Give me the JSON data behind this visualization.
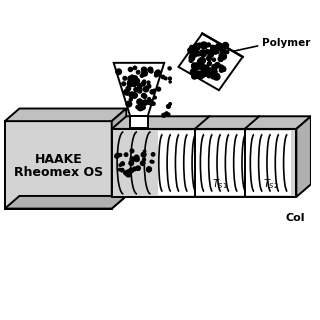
{
  "bg_color": "#ffffff",
  "device_color": "#d3d3d3",
  "device_color2": "#c0c0c0",
  "device_color3": "#b0b0b0",
  "outline_color": "#000000",
  "haake_label1": "HAAKE",
  "haake_label2": "Rheomex OS",
  "polymer_label": "Polymer",
  "ts1_label": "T_{S1}",
  "ts2_label": "T_{S2}",
  "col_label": "Col",
  "figsize": [
    3.2,
    3.2
  ],
  "dpi": 100
}
